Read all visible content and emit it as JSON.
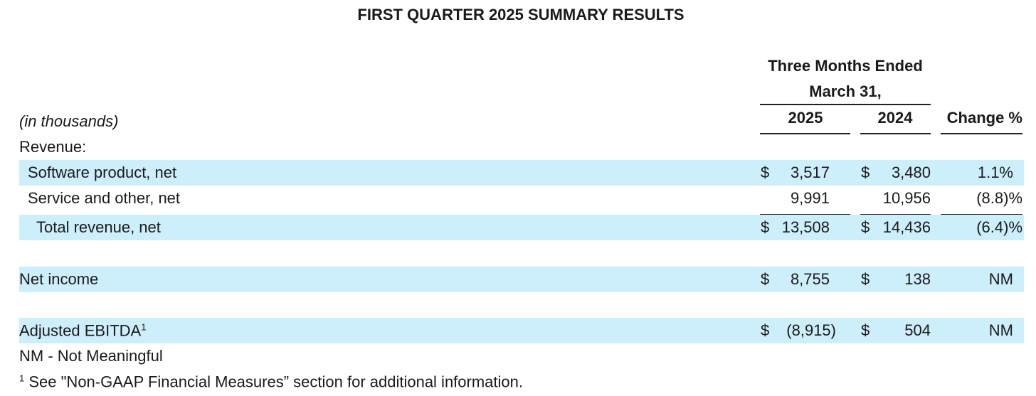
{
  "title": "FIRST QUARTER 2025 SUMMARY RESULTS",
  "header": {
    "group_line1": "Three Months Ended",
    "group_line2": "March 31,",
    "unit": "(in thousands)",
    "columns": [
      "2025",
      "2024",
      "Change %"
    ]
  },
  "rows": [
    {
      "label": "Revenue:"
    },
    {
      "label": "Software product, net",
      "currency_2025": "$",
      "value_2025": "3,517",
      "currency_2024": "$",
      "value_2024": "3,480",
      "change": "1.1%",
      "shaded": true
    },
    {
      "label": "Service and other, net",
      "value_2025": "9,991",
      "value_2024": "10,956",
      "change": "(8.8)%"
    },
    {
      "label": "Total revenue, net",
      "currency_2025": "$",
      "value_2025": "13,508",
      "currency_2024": "$",
      "value_2024": "14,436",
      "change": "(6.4)%",
      "shaded": true
    },
    {
      "label": "Net income",
      "currency_2025": "$",
      "value_2025": "8,755",
      "currency_2024": "$",
      "value_2024": "138",
      "change": "NM",
      "shaded": true
    },
    {
      "label": "Adjusted EBITDA",
      "footnote": "1",
      "currency_2025": "$",
      "value_2025": "(8,915)",
      "currency_2024": "$",
      "value_2024": "504",
      "change": "NM",
      "shaded": true
    }
  ],
  "notes": [
    {
      "text": "NM - Not Meaningful"
    },
    {
      "marker": "1",
      "text": "See \"Non-GAAP Financial Measures” section for additional information."
    }
  ]
}
